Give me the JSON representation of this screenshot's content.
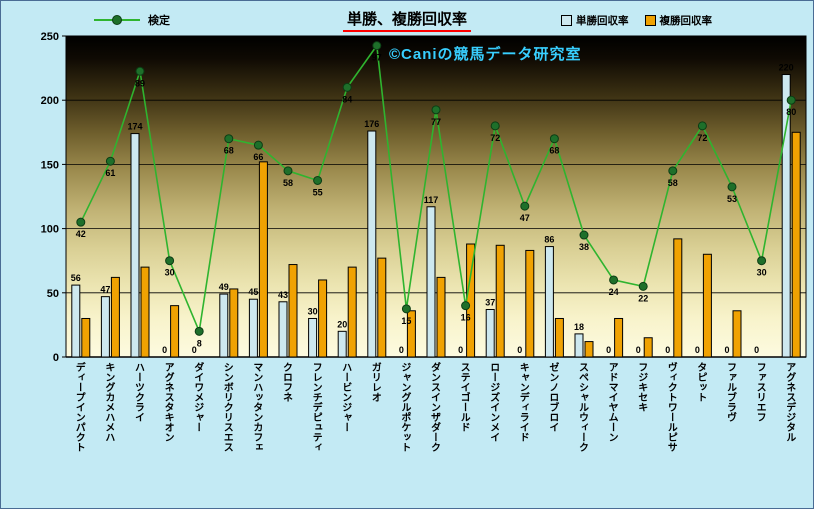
{
  "title": "単勝、複勝回収率",
  "watermark": "©Caniの競馬データ研究室",
  "legend": {
    "line_label": "検定",
    "tansho_label": "単勝回収率",
    "fukusho_label": "複勝回収率"
  },
  "colors": {
    "figure_bg": "#C3EAF4",
    "figure_border": "#4A6C94",
    "tansho_bar": "#CDE8EF",
    "fukusho_bar": "#F0A202",
    "bar_stroke": "#000000",
    "line": "#2FB42F",
    "marker_fill": "#1E6F2A",
    "marker_stroke": "#0C3D14",
    "title_underline": "#FF0000",
    "watermark_text": "#38CFFF",
    "label_text": "#000000"
  },
  "chart_data": {
    "type": "bar",
    "subtype": "grouped bars with line overlay (combo chart)",
    "title": "単勝、複勝回収率",
    "categories": [
      "ディープインパクト",
      "キングカメハメハ",
      "ハーツクライ",
      "アグネスタキオン",
      "ダイワメジャー",
      "シンボリクリスエス",
      "マンハッタンカフェ",
      "クロフネ",
      "フレンチデピュティ",
      "ハービンジャー",
      "ガリレオ",
      "ジャングルポケット",
      "ダンスインザダーク",
      "ステイゴールド",
      "ロージズインメイ",
      "キャンディライド",
      "ゼンノロブロイ",
      "スペシャルウィーク",
      "アドマイヤムーン",
      "フジキセキ",
      "ヴィクトワールピサ",
      "タピット",
      "ファルブラヴ",
      "ファスリエフ",
      "アグネスデジタル"
    ],
    "series": [
      {
        "name": "単勝回収率",
        "type": "bar",
        "values": [
          56,
          47,
          174,
          0,
          0,
          49,
          45,
          43,
          30,
          20,
          176,
          0,
          117,
          0,
          37,
          0,
          86,
          18,
          0,
          0,
          0,
          0,
          0,
          0,
          220
        ]
      },
      {
        "name": "複勝回収率",
        "type": "bar",
        "values": [
          30,
          62,
          70,
          40,
          0,
          53,
          152,
          72,
          60,
          70,
          77,
          36,
          62,
          88,
          87,
          83,
          30,
          12,
          30,
          15,
          92,
          80,
          36,
          0,
          175
        ]
      },
      {
        "name": "検定",
        "type": "line",
        "axis": "secondary",
        "secondary_to_primary_scale": 2.5,
        "values": [
          42,
          61,
          89,
          30,
          8,
          68,
          66,
          58,
          55,
          84,
          97,
          15,
          77,
          16,
          72,
          47,
          68,
          38,
          24,
          22,
          58,
          72,
          53,
          30,
          80
        ]
      }
    ],
    "xlabel": "",
    "ylabel": "",
    "ylim": [
      0,
      250
    ],
    "yticks": [
      0,
      50,
      100,
      150,
      200,
      250
    ],
    "grid": "horizontal",
    "legend_position": "top",
    "data_labels": {
      "単勝回収率": true,
      "複勝回収率": false,
      "検定": true
    }
  }
}
